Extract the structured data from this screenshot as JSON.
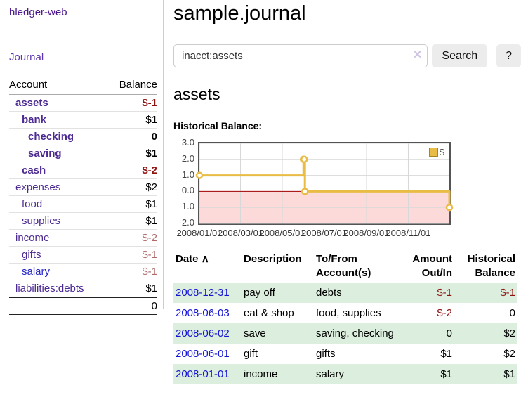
{
  "sidebar": {
    "brand": "hledger-web",
    "journal_link": "Journal",
    "accounts": {
      "headers": {
        "account": "Account",
        "balance": "Balance"
      },
      "rows": [
        {
          "account": "assets",
          "balance": "$-1"
        },
        {
          "account": "bank",
          "balance": "$1"
        },
        {
          "account": "checking",
          "balance": "0"
        },
        {
          "account": "saving",
          "balance": "$1"
        },
        {
          "account": "cash",
          "balance": "$-2"
        },
        {
          "account": "expenses",
          "balance": "$2"
        },
        {
          "account": "food",
          "balance": "$1"
        },
        {
          "account": "supplies",
          "balance": "$1"
        },
        {
          "account": "income",
          "balance": "$-2"
        },
        {
          "account": "gifts",
          "balance": "$-1"
        },
        {
          "account": "salary",
          "balance": "$-1"
        },
        {
          "account": "liabilities:debts",
          "balance": "$1"
        }
      ],
      "total": "0"
    }
  },
  "main": {
    "title": "sample.journal",
    "search": {
      "value": "inacct:assets",
      "clear_icon": "✕",
      "search_button": "Search",
      "help_button": "?"
    },
    "account_title": "assets",
    "section_label": "Historical Balance:"
  },
  "chart_data": {
    "type": "line",
    "step": true,
    "title": "Historical Balance",
    "series": [
      {
        "name": "$",
        "color": "#e8bc45",
        "points": [
          [
            "2008-01-01",
            1
          ],
          [
            "2008-06-01",
            2
          ],
          [
            "2008-06-02",
            2
          ],
          [
            "2008-06-03",
            0
          ],
          [
            "2008-12-31",
            -1
          ]
        ]
      }
    ],
    "x_range": [
      "2008-01-01",
      "2008-12-31"
    ],
    "ylim": [
      -2.0,
      3.0
    ],
    "yticks": [
      "3.0",
      "2.0",
      "1.0",
      "0.0",
      "-1.0",
      "-2.0"
    ],
    "xticks": [
      "2008/01/01",
      "2008/03/01",
      "2008/05/01",
      "2008/07/01",
      "2008/09/01",
      "2008/11/01"
    ],
    "grid": true,
    "grid_color": "#d8d8d8",
    "negative_region_color": "#fcdada",
    "zero_line_color": "#a40000",
    "marker_fill": "#ffffff",
    "legend_position": "top-right"
  },
  "register": {
    "headers": {
      "date": "Date",
      "sort_icon": "∧",
      "description": "Description",
      "account": "To/From Account(s)",
      "amount": "Amount Out/In",
      "balance": "Historical Balance"
    },
    "rows": [
      {
        "date": "2008-12-31",
        "description": "pay off",
        "account": "debts",
        "amount": "$-1",
        "balance": "$-1"
      },
      {
        "date": "2008-06-03",
        "description": "eat & shop",
        "account": "food, supplies",
        "amount": "$-2",
        "balance": "0"
      },
      {
        "date": "2008-06-02",
        "description": "save",
        "account": "saving, checking",
        "amount": "0",
        "balance": "$2"
      },
      {
        "date": "2008-06-01",
        "description": "gift",
        "account": "gifts",
        "amount": "$1",
        "balance": "$2"
      },
      {
        "date": "2008-01-01",
        "description": "income",
        "account": "salary",
        "amount": "$1",
        "balance": "$1"
      }
    ]
  }
}
